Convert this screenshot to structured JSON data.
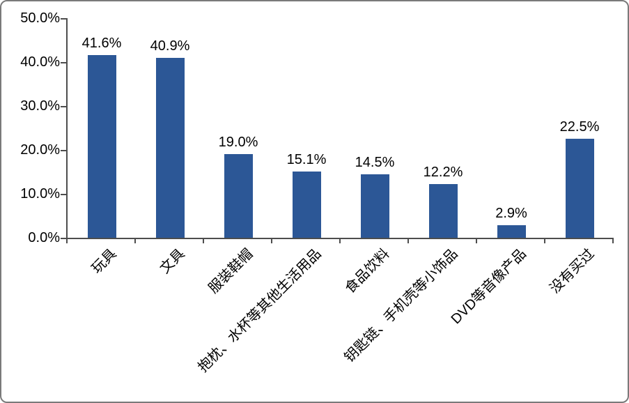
{
  "chart_data": {
    "type": "bar",
    "title": "",
    "xlabel": "",
    "ylabel": "",
    "categories": [
      "玩具",
      "文具",
      "服装鞋帽",
      "抱枕、水杯等其他生活用品",
      "食品饮料",
      "钥匙链、手机壳等小饰品",
      "DVD等音像产品",
      "没有买过"
    ],
    "values": [
      41.6,
      40.9,
      19.0,
      15.1,
      14.5,
      12.2,
      2.9,
      22.5
    ],
    "data_labels": [
      "41.6%",
      "40.9%",
      "19.0%",
      "15.1%",
      "14.5%",
      "12.2%",
      "2.9%",
      "22.5%"
    ],
    "y_tick_labels": [
      "50.0%",
      "40.0%",
      "30.0%",
      "20.0%",
      "10.0%",
      "0.0%"
    ],
    "ylim": [
      0,
      50
    ],
    "y_tick_step": 10,
    "grid": false,
    "legend": false,
    "bar_color": "#2C5796",
    "axis_color": "#4d4d4d",
    "text_color": "#000000",
    "background_color": "#ffffff",
    "border_color": "#7a7a7a"
  }
}
